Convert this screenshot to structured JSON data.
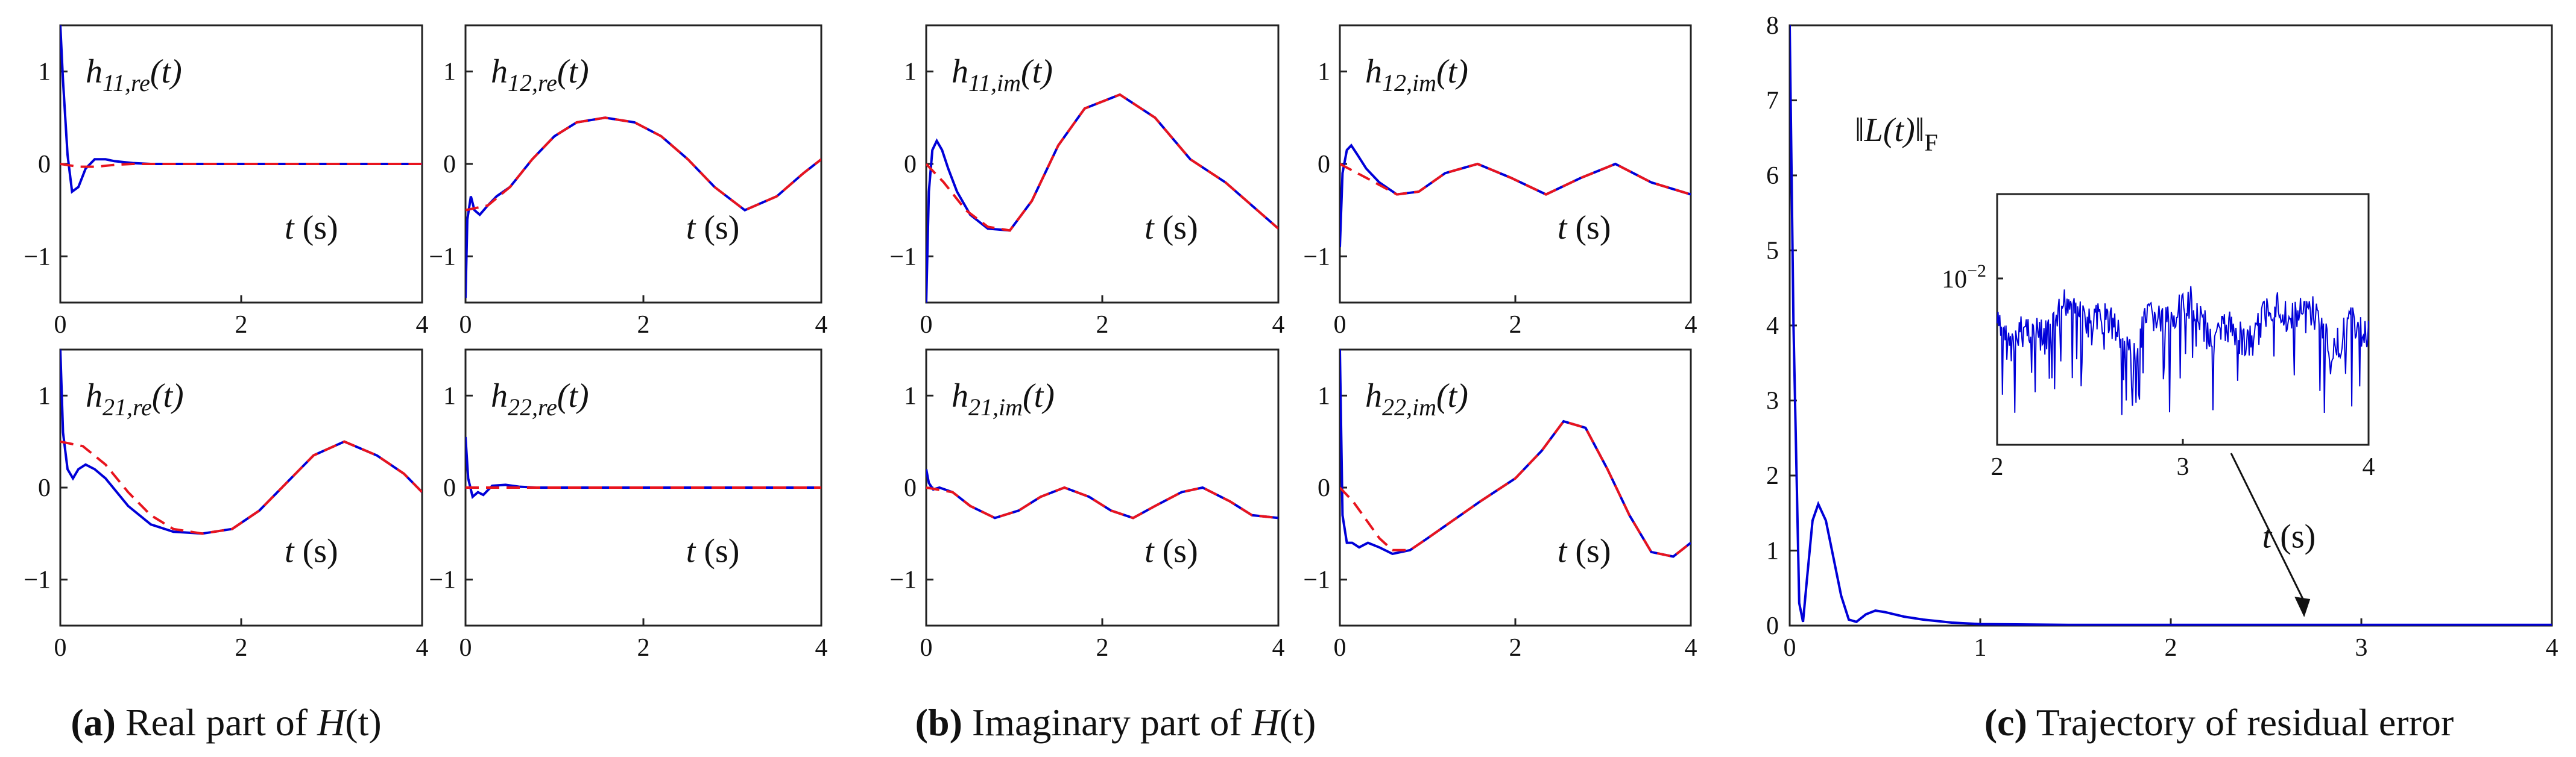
{
  "colors": {
    "simulated": "#0000d8",
    "reference": "#e8141e",
    "axis": "#222222"
  },
  "chart_data": [
    {
      "id": "h11_re",
      "type": "line",
      "panel": "a",
      "label_main": "h",
      "label_sub": "11,re",
      "label_tail": "(t)",
      "xlabel": "t (s)",
      "xlim": [
        0,
        4
      ],
      "ylim": [
        -1.5,
        1.5
      ],
      "xticks": [
        "0",
        "2",
        "4"
      ],
      "yticks": [
        "1",
        "0",
        "−1"
      ],
      "series": [
        {
          "name": "simulated",
          "x": [
            0,
            0.03,
            0.08,
            0.13,
            0.2,
            0.28,
            0.38,
            0.5,
            0.6,
            0.8,
            1.0,
            1.5,
            2,
            3,
            4
          ],
          "y": [
            1.5,
            0.9,
            0.1,
            -0.3,
            -0.25,
            -0.05,
            0.05,
            0.05,
            0.03,
            0.01,
            0,
            0,
            0,
            0,
            0
          ]
        },
        {
          "name": "reference",
          "x": [
            0,
            0.2,
            0.4,
            0.6,
            0.8,
            1.0,
            1.5,
            2,
            3,
            4
          ],
          "y": [
            0,
            -0.03,
            -0.03,
            -0.01,
            0,
            0,
            0,
            0,
            0,
            0
          ]
        }
      ]
    },
    {
      "id": "h12_re",
      "type": "line",
      "panel": "a",
      "label_main": "h",
      "label_sub": "12,re",
      "label_tail": "(t)",
      "xlabel": "t (s)",
      "xlim": [
        0,
        4
      ],
      "ylim": [
        -1.5,
        1.5
      ],
      "xticks": [
        "0",
        "2",
        "4"
      ],
      "yticks": [
        "1",
        "0",
        "−1"
      ],
      "series": [
        {
          "name": "simulated",
          "x": [
            0,
            0.02,
            0.06,
            0.1,
            0.16,
            0.25,
            0.35,
            0.5,
            0.75,
            1.0,
            1.25,
            1.57,
            1.9,
            2.2,
            2.5,
            2.8,
            3.14,
            3.5,
            3.8,
            4.0
          ],
          "y": [
            -1.45,
            -0.6,
            -0.35,
            -0.5,
            -0.55,
            -0.45,
            -0.35,
            -0.25,
            0.05,
            0.3,
            0.45,
            0.5,
            0.45,
            0.3,
            0.05,
            -0.25,
            -0.5,
            -0.35,
            -0.1,
            0.05
          ]
        },
        {
          "name": "reference",
          "x": [
            0,
            0.25,
            0.5,
            0.75,
            1.0,
            1.25,
            1.57,
            1.9,
            2.2,
            2.5,
            2.8,
            3.14,
            3.5,
            3.8,
            4.0
          ],
          "y": [
            -0.5,
            -0.45,
            -0.25,
            0.05,
            0.3,
            0.45,
            0.5,
            0.45,
            0.3,
            0.05,
            -0.25,
            -0.5,
            -0.35,
            -0.1,
            0.05
          ]
        }
      ]
    },
    {
      "id": "h21_re",
      "type": "line",
      "panel": "a",
      "label_main": "h",
      "label_sub": "21,re",
      "label_tail": "(t)",
      "xlabel": "t (s)",
      "xlim": [
        0,
        4
      ],
      "ylim": [
        -1.5,
        1.5
      ],
      "xticks": [
        "0",
        "2",
        "4"
      ],
      "yticks": [
        "1",
        "0",
        "−1"
      ],
      "series": [
        {
          "name": "simulated",
          "x": [
            0,
            0.03,
            0.08,
            0.14,
            0.2,
            0.28,
            0.38,
            0.5,
            0.75,
            1.0,
            1.25,
            1.57,
            1.9,
            2.2,
            2.5,
            2.8,
            3.14,
            3.5,
            3.8,
            4.0
          ],
          "y": [
            1.5,
            0.6,
            0.2,
            0.1,
            0.2,
            0.25,
            0.2,
            0.1,
            -0.2,
            -0.4,
            -0.48,
            -0.5,
            -0.45,
            -0.25,
            0.05,
            0.35,
            0.5,
            0.35,
            0.15,
            -0.05
          ]
        },
        {
          "name": "reference",
          "x": [
            0,
            0.25,
            0.5,
            0.75,
            1.0,
            1.25,
            1.57,
            1.9,
            2.2,
            2.5,
            2.8,
            3.14,
            3.5,
            3.8,
            4.0
          ],
          "y": [
            0.5,
            0.45,
            0.25,
            -0.05,
            -0.3,
            -0.45,
            -0.5,
            -0.45,
            -0.25,
            0.05,
            0.35,
            0.5,
            0.35,
            0.15,
            -0.05
          ]
        }
      ]
    },
    {
      "id": "h22_re",
      "type": "line",
      "panel": "a",
      "label_main": "h",
      "label_sub": "22,re",
      "label_tail": "(t)",
      "xlabel": "t (s)",
      "xlim": [
        0,
        4
      ],
      "ylim": [
        -1.5,
        1.5
      ],
      "xticks": [
        "0",
        "2",
        "4"
      ],
      "yticks": [
        "1",
        "0",
        "−1"
      ],
      "series": [
        {
          "name": "simulated",
          "x": [
            0,
            0.03,
            0.08,
            0.14,
            0.2,
            0.3,
            0.45,
            0.6,
            0.8,
            1.0,
            2,
            3,
            4
          ],
          "y": [
            0.55,
            0.1,
            -0.1,
            -0.05,
            -0.08,
            0.02,
            0.03,
            0.01,
            0,
            0,
            0,
            0,
            0
          ]
        },
        {
          "name": "reference",
          "x": [
            0,
            0.5,
            1,
            2,
            3,
            4
          ],
          "y": [
            0,
            0,
            0,
            0,
            0,
            0
          ]
        }
      ]
    },
    {
      "id": "h11_im",
      "type": "line",
      "panel": "b",
      "label_main": "h",
      "label_sub": "11,im",
      "label_tail": "(t)",
      "xlabel": "t (s)",
      "xlim": [
        0,
        4
      ],
      "ylim": [
        -1.5,
        1.5
      ],
      "xticks": [
        "0",
        "2",
        "4"
      ],
      "yticks": [
        "1",
        "0",
        "−1"
      ],
      "series": [
        {
          "name": "simulated",
          "x": [
            0,
            0.03,
            0.07,
            0.12,
            0.18,
            0.25,
            0.35,
            0.5,
            0.7,
            0.95,
            1.2,
            1.5,
            1.8,
            2.2,
            2.6,
            3.0,
            3.4,
            3.7,
            4.0
          ],
          "y": [
            -1.5,
            -0.3,
            0.15,
            0.25,
            0.15,
            -0.05,
            -0.3,
            -0.55,
            -0.7,
            -0.72,
            -0.4,
            0.2,
            0.6,
            0.75,
            0.5,
            0.05,
            -0.2,
            -0.45,
            -0.7
          ]
        },
        {
          "name": "reference",
          "x": [
            0,
            0.2,
            0.45,
            0.7,
            0.95,
            1.2,
            1.5,
            1.8,
            2.2,
            2.6,
            3.0,
            3.4,
            3.7,
            4.0
          ],
          "y": [
            0,
            -0.2,
            -0.5,
            -0.68,
            -0.72,
            -0.4,
            0.2,
            0.6,
            0.75,
            0.5,
            0.05,
            -0.2,
            -0.45,
            -0.7
          ]
        }
      ]
    },
    {
      "id": "h12_im",
      "type": "line",
      "panel": "b",
      "label_main": "h",
      "label_sub": "12,im",
      "label_tail": "(t)",
      "xlabel": "t (s)",
      "xlim": [
        0,
        4
      ],
      "ylim": [
        -1.5,
        1.5
      ],
      "xticks": [
        "0",
        "2",
        "4"
      ],
      "yticks": [
        "1",
        "0",
        "−1"
      ],
      "series": [
        {
          "name": "simulated",
          "x": [
            0,
            0.03,
            0.08,
            0.13,
            0.2,
            0.3,
            0.45,
            0.65,
            0.9,
            1.2,
            1.57,
            1.95,
            2.35,
            2.75,
            3.14,
            3.55,
            4.0
          ],
          "y": [
            -0.9,
            -0.1,
            0.15,
            0.2,
            0.1,
            -0.05,
            -0.2,
            -0.33,
            -0.3,
            -0.1,
            0,
            -0.15,
            -0.33,
            -0.15,
            0,
            -0.2,
            -0.33
          ]
        },
        {
          "name": "reference",
          "x": [
            0,
            0.3,
            0.65,
            0.9,
            1.2,
            1.57,
            1.95,
            2.35,
            2.75,
            3.14,
            3.55,
            4.0
          ],
          "y": [
            0,
            -0.15,
            -0.33,
            -0.3,
            -0.1,
            0,
            -0.15,
            -0.33,
            -0.15,
            0,
            -0.2,
            -0.33
          ]
        }
      ]
    },
    {
      "id": "h21_im",
      "type": "line",
      "panel": "b",
      "label_main": "h",
      "label_sub": "21,im",
      "label_tail": "(t)",
      "xlabel": "t (s)",
      "xlim": [
        0,
        4
      ],
      "ylim": [
        -1.5,
        1.5
      ],
      "xticks": [
        "0",
        "2",
        "4"
      ],
      "yticks": [
        "1",
        "0",
        "−1"
      ],
      "series": [
        {
          "name": "simulated",
          "x": [
            0,
            0.03,
            0.08,
            0.15,
            0.3,
            0.5,
            0.78,
            1.05,
            1.3,
            1.57,
            1.85,
            2.1,
            2.35,
            2.6,
            2.9,
            3.14,
            3.45,
            3.7,
            4.0
          ],
          "y": [
            0.2,
            0.05,
            -0.02,
            0,
            -0.05,
            -0.2,
            -0.33,
            -0.25,
            -0.1,
            0,
            -0.1,
            -0.25,
            -0.33,
            -0.2,
            -0.05,
            0,
            -0.15,
            -0.3,
            -0.33
          ]
        },
        {
          "name": "reference",
          "x": [
            0,
            0.3,
            0.5,
            0.78,
            1.05,
            1.3,
            1.57,
            1.85,
            2.1,
            2.35,
            2.6,
            2.9,
            3.14,
            3.45,
            3.7,
            4.0
          ],
          "y": [
            0,
            -0.05,
            -0.2,
            -0.33,
            -0.25,
            -0.1,
            0,
            -0.1,
            -0.25,
            -0.33,
            -0.2,
            -0.05,
            0,
            -0.15,
            -0.3,
            -0.33
          ]
        }
      ]
    },
    {
      "id": "h22_im",
      "type": "line",
      "panel": "b",
      "label_main": "h",
      "label_sub": "22,im",
      "label_tail": "(t)",
      "xlabel": "t (s)",
      "xlim": [
        0,
        4
      ],
      "ylim": [
        -1.5,
        1.5
      ],
      "xticks": [
        "0",
        "2",
        "4"
      ],
      "yticks": [
        "1",
        "0",
        "−1"
      ],
      "series": [
        {
          "name": "simulated",
          "x": [
            0,
            0.03,
            0.08,
            0.14,
            0.22,
            0.32,
            0.45,
            0.6,
            0.8,
            1.0,
            1.3,
            1.6,
            2.0,
            2.3,
            2.55,
            2.8,
            3.05,
            3.3,
            3.55,
            3.8,
            4.0
          ],
          "y": [
            1.5,
            -0.3,
            -0.6,
            -0.6,
            -0.65,
            -0.6,
            -0.65,
            -0.72,
            -0.68,
            -0.55,
            -0.35,
            -0.15,
            0.1,
            0.4,
            0.72,
            0.65,
            0.2,
            -0.3,
            -0.7,
            -0.75,
            -0.6
          ]
        },
        {
          "name": "reference",
          "x": [
            0,
            0.15,
            0.3,
            0.45,
            0.6,
            0.8,
            1.0,
            1.3,
            1.6,
            2.0,
            2.3,
            2.55,
            2.8,
            3.05,
            3.3,
            3.55,
            3.8,
            4.0
          ],
          "y": [
            0,
            -0.15,
            -0.35,
            -0.55,
            -0.68,
            -0.68,
            -0.55,
            -0.35,
            -0.15,
            0.1,
            0.4,
            0.72,
            0.65,
            0.2,
            -0.3,
            -0.7,
            -0.75,
            -0.6
          ]
        }
      ]
    },
    {
      "id": "residual",
      "type": "line",
      "panel": "c",
      "annotation_main": "L(t)",
      "annotation_sub": "F",
      "xlabel": "t (s)",
      "xlim": [
        0,
        4
      ],
      "ylim": [
        0,
        8
      ],
      "xticks": [
        "0",
        "1",
        "2",
        "3",
        "4"
      ],
      "yticks": [
        "0",
        "1",
        "2",
        "3",
        "4",
        "5",
        "6",
        "7",
        "8"
      ],
      "series": [
        {
          "name": "residual",
          "x": [
            0,
            0.02,
            0.05,
            0.07,
            0.09,
            0.12,
            0.15,
            0.19,
            0.23,
            0.27,
            0.31,
            0.35,
            0.4,
            0.45,
            0.5,
            0.6,
            0.7,
            0.85,
            1.0,
            1.5,
            2.0,
            3.0,
            4.0
          ],
          "y": [
            8,
            4,
            0.3,
            0.05,
            0.6,
            1.4,
            1.62,
            1.4,
            0.9,
            0.4,
            0.08,
            0.05,
            0.15,
            0.2,
            0.18,
            0.12,
            0.08,
            0.04,
            0.02,
            0.01,
            0.01,
            0.01,
            0.01
          ]
        }
      ],
      "inset": {
        "xlim": [
          2,
          4
        ],
        "xticks": [
          "2",
          "3",
          "4"
        ],
        "ytick_base": "10",
        "ytick_exp": "−2",
        "arrow_target_x": 2.7
      }
    }
  ],
  "captions": [
    {
      "tag": "(a)",
      "text": " Real part of ",
      "math": "H",
      "tail": "(t)"
    },
    {
      "tag": "(b)",
      "text": " Imaginary part of ",
      "math": "H",
      "tail": "(t)"
    },
    {
      "tag": "(c)",
      "text": " Trajectory of residual error",
      "math": "",
      "tail": ""
    }
  ]
}
